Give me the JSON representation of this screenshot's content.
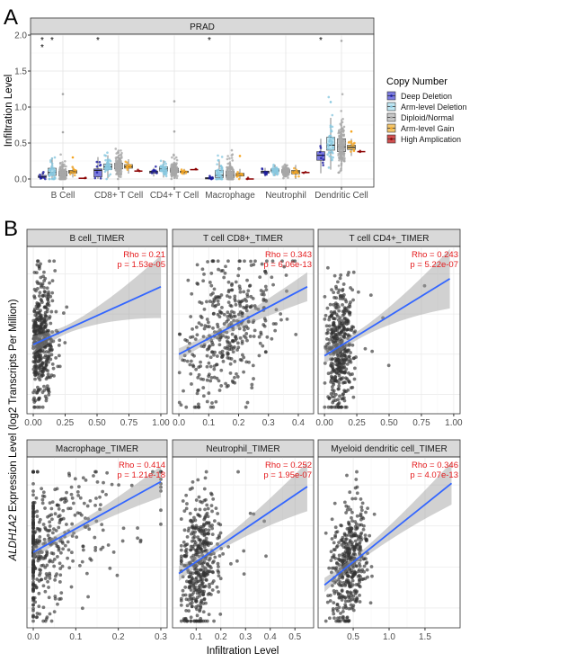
{
  "panel_labels": {
    "a": "A",
    "b": "B"
  },
  "chart_data": [
    {
      "type": "box",
      "panel": "A",
      "title": "PRAD",
      "xlabel": "",
      "ylabel": "Infiltration Level",
      "ylim": [
        0,
        2.0
      ],
      "yticks": [
        "0.0",
        "0.5",
        "1.0",
        "1.5",
        "2.0"
      ],
      "ytick_values": [
        0,
        0.5,
        1.0,
        1.5,
        2.0
      ],
      "categories": [
        "B Cell",
        "CD8+ T Cell",
        "CD4+ T Cell",
        "Macrophage",
        "Neutrophil",
        "Dendritic Cell"
      ],
      "legend": {
        "title": "Copy Number",
        "position": "right",
        "entries": [
          "Deep Deletion",
          "Arm-level Deletion",
          "Diploid/Normal",
          "Arm-level Gain",
          "High Amplication"
        ],
        "fill_colors": [
          "#7b7be0",
          "#bfe6f2",
          "#c8c8c8",
          "#f2c56b",
          "#d05050"
        ],
        "point_colors": [
          "#1a1aa0",
          "#88c8e0",
          "#a8a8a8",
          "#f5a623",
          "#8b0000"
        ]
      },
      "series": [
        {
          "name": "Deep Deletion",
          "q1": [
            0.02,
            0.03,
            0.08,
            0.0,
            0.08,
            0.26
          ],
          "median": [
            0.03,
            0.12,
            0.1,
            0.01,
            0.1,
            0.33
          ],
          "q3": [
            0.05,
            0.14,
            0.11,
            0.02,
            0.11,
            0.38
          ]
        },
        {
          "name": "Arm-level Deletion",
          "q1": [
            0.05,
            0.13,
            0.11,
            0.02,
            0.1,
            0.4
          ],
          "median": [
            0.09,
            0.17,
            0.14,
            0.05,
            0.12,
            0.47
          ],
          "q3": [
            0.15,
            0.21,
            0.17,
            0.12,
            0.14,
            0.58
          ]
        },
        {
          "name": "Diploid/Normal",
          "q1": [
            0.04,
            0.14,
            0.09,
            0.02,
            0.09,
            0.38
          ],
          "median": [
            0.07,
            0.18,
            0.12,
            0.05,
            0.11,
            0.45
          ],
          "q3": [
            0.11,
            0.22,
            0.15,
            0.11,
            0.13,
            0.56
          ]
        },
        {
          "name": "Arm-level Gain",
          "q1": [
            0.08,
            0.15,
            0.09,
            0.04,
            0.07,
            0.41
          ],
          "median": [
            0.1,
            0.17,
            0.1,
            0.06,
            0.1,
            0.44
          ],
          "q3": [
            0.12,
            0.2,
            0.11,
            0.08,
            0.12,
            0.47
          ]
        },
        {
          "name": "High Amplication",
          "q1": [
            0.01,
            0.11,
            0.13,
            0.0,
            0.09,
            0.38
          ],
          "median": [
            0.01,
            0.11,
            0.13,
            0.0,
            0.09,
            0.38
          ],
          "q3": [
            0.015,
            0.11,
            0.13,
            0.0,
            0.09,
            0.38
          ]
        }
      ],
      "significance": [
        {
          "category": "B Cell",
          "series": "Deep Deletion",
          "label": "**"
        },
        {
          "category": "B Cell",
          "series": "Arm-level Deletion",
          "label": "*"
        },
        {
          "category": "CD8+ T Cell",
          "series": "Deep Deletion",
          "label": "*"
        },
        {
          "category": "Macrophage",
          "series": "Deep Deletion",
          "label": "*"
        },
        {
          "category": "Dendritic Cell",
          "series": "Deep Deletion",
          "label": "*"
        }
      ]
    },
    {
      "type": "scatter",
      "panel": "B",
      "title": "B cell_TIMER",
      "rho": "Rho = 0.21",
      "p": "p = 1.53e-05",
      "xlim": [
        0,
        1.0
      ],
      "xticks": [
        "0.00",
        "0.25",
        "0.50",
        "0.75",
        "1.00"
      ],
      "xtick_values": [
        0,
        0.25,
        0.5,
        0.75,
        1.0
      ],
      "fit": {
        "x": [
          0,
          1.0
        ],
        "y": [
          0.41,
          0.77
        ],
        "ci_end": [
          0.63,
          0.97
        ]
      }
    },
    {
      "type": "scatter",
      "panel": "B",
      "title": "T cell CD8+_TIMER",
      "rho": "Rho = 0.343",
      "p": "p = 6.06e-13",
      "xlim": [
        0,
        0.43
      ],
      "xticks": [
        "0.0",
        "0.1",
        "0.2",
        "0.3",
        "0.4"
      ],
      "xtick_values": [
        0,
        0.1,
        0.2,
        0.3,
        0.4
      ],
      "fit": {
        "x": [
          0,
          0.43
        ],
        "y": [
          0.35,
          0.77
        ],
        "ci_end": [
          0.71,
          0.84
        ]
      }
    },
    {
      "type": "scatter",
      "panel": "B",
      "title": "T cell CD4+_TIMER",
      "rho": "Rho = 0.243",
      "p": "p = 5.22e-07",
      "xlim": [
        0,
        1.0
      ],
      "xticks": [
        "0.00",
        "0.25",
        "0.50",
        "0.75",
        "1.00"
      ],
      "xtick_values": [
        0,
        0.25,
        0.5,
        0.75,
        1.0
      ],
      "fit": {
        "x": [
          0,
          0.97
        ],
        "y": [
          0.34,
          0.82
        ],
        "ci_end": [
          0.66,
          0.98
        ]
      }
    },
    {
      "type": "scatter",
      "panel": "B",
      "title": "Macrophage_TIMER",
      "rho": "Rho = 0.414",
      "p": "p = 1.21e-18",
      "xlim": [
        0,
        0.3
      ],
      "xticks": [
        "0.0",
        "0.1",
        "0.2",
        "0.3"
      ],
      "xtick_values": [
        0,
        0.1,
        0.2,
        0.3
      ],
      "fit": {
        "x": [
          0,
          0.3
        ],
        "y": [
          0.44,
          0.87
        ],
        "ci_end": [
          0.8,
          0.94
        ]
      }
    },
    {
      "type": "scatter",
      "panel": "B",
      "title": "Neutrophil_TIMER",
      "rho": "Rho = 0.252",
      "p": "p = 1.95e-07",
      "xlim": [
        0.03,
        0.55
      ],
      "xticks": [
        "0.1",
        "0.2",
        "0.3",
        "0.4",
        "0.5"
      ],
      "xtick_values": [
        0.1,
        0.2,
        0.3,
        0.4,
        0.5
      ],
      "fit": {
        "x": [
          0.03,
          0.55
        ],
        "y": [
          0.31,
          0.84
        ],
        "ci_end": [
          0.72,
          0.97
        ]
      }
    },
    {
      "type": "scatter",
      "panel": "B",
      "title": "Myeloid dendritic cell_TIMER",
      "rho": "Rho = 0.346",
      "p": "p = 4.07e-13",
      "xlim": [
        0.1,
        1.9
      ],
      "xticks": [
        "0.5",
        "1.0",
        "1.5"
      ],
      "xtick_values": [
        0.5,
        1.0,
        1.5
      ],
      "fit": {
        "x": [
          0.1,
          1.87
        ],
        "y": [
          0.24,
          0.86
        ],
        "ci_end": [
          0.76,
          0.97
        ]
      }
    }
  ],
  "panel_b_axes": {
    "xlabel": "Infiltration Level",
    "ylabel_gene": "ALDH1A2",
    "ylabel_rest": " Expression Level (log2 Transcripts Per Million)"
  }
}
